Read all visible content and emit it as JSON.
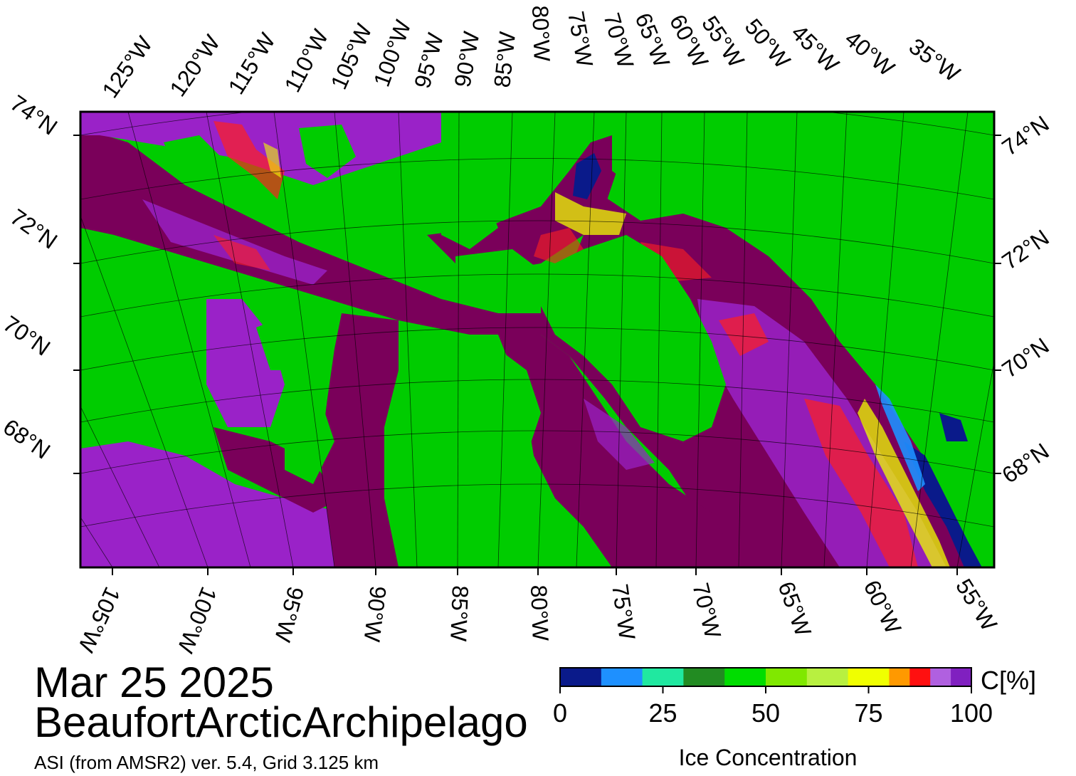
{
  "date": "Mar 25 2025",
  "region": "BeaufortArcticArchipelago",
  "product": "ASI (from AMSR2) ver. 5.4,  Grid 3.125 km",
  "colorbar": {
    "unit": "C[%]",
    "title": "Ice Concentration",
    "tick_labels": [
      "0",
      "25",
      "50",
      "75",
      "100"
    ],
    "ticks": [
      0,
      25,
      50,
      75,
      100
    ],
    "range": [
      0,
      100
    ],
    "colors": [
      "#0a1a8a",
      "#1e90ff",
      "#20e8a0",
      "#228b22",
      "#00dd00",
      "#80e800",
      "#b8f040",
      "#f0ff00",
      "#ff9900",
      "#ff1010",
      "#b060e0",
      "#8020c0"
    ]
  },
  "graticule": {
    "top_lon_labels": [
      "125°W",
      "120°W",
      "115°W",
      "110°W",
      "105°W",
      "100°W",
      "95°W",
      "90°W",
      "85°W",
      "80°W",
      "75°W",
      "70°W",
      "65°W",
      "60°W",
      "55°W",
      "50°W",
      "45°W",
      "40°W",
      "35°W"
    ],
    "bottom_lon_labels": [
      "105°W",
      "100°W",
      "95°W",
      "90°W",
      "85°W",
      "80°W",
      "75°W",
      "70°W",
      "65°W",
      "60°W",
      "55°W"
    ],
    "lat_labels": [
      "74°N",
      "72°N",
      "70°N",
      "68°N"
    ]
  },
  "colors": {
    "land": "#00cc00",
    "consolidated_ice": "#7a005a",
    "high_concentration_ice": "#9a22c8",
    "frame": "#000000",
    "background": "#ffffff"
  }
}
